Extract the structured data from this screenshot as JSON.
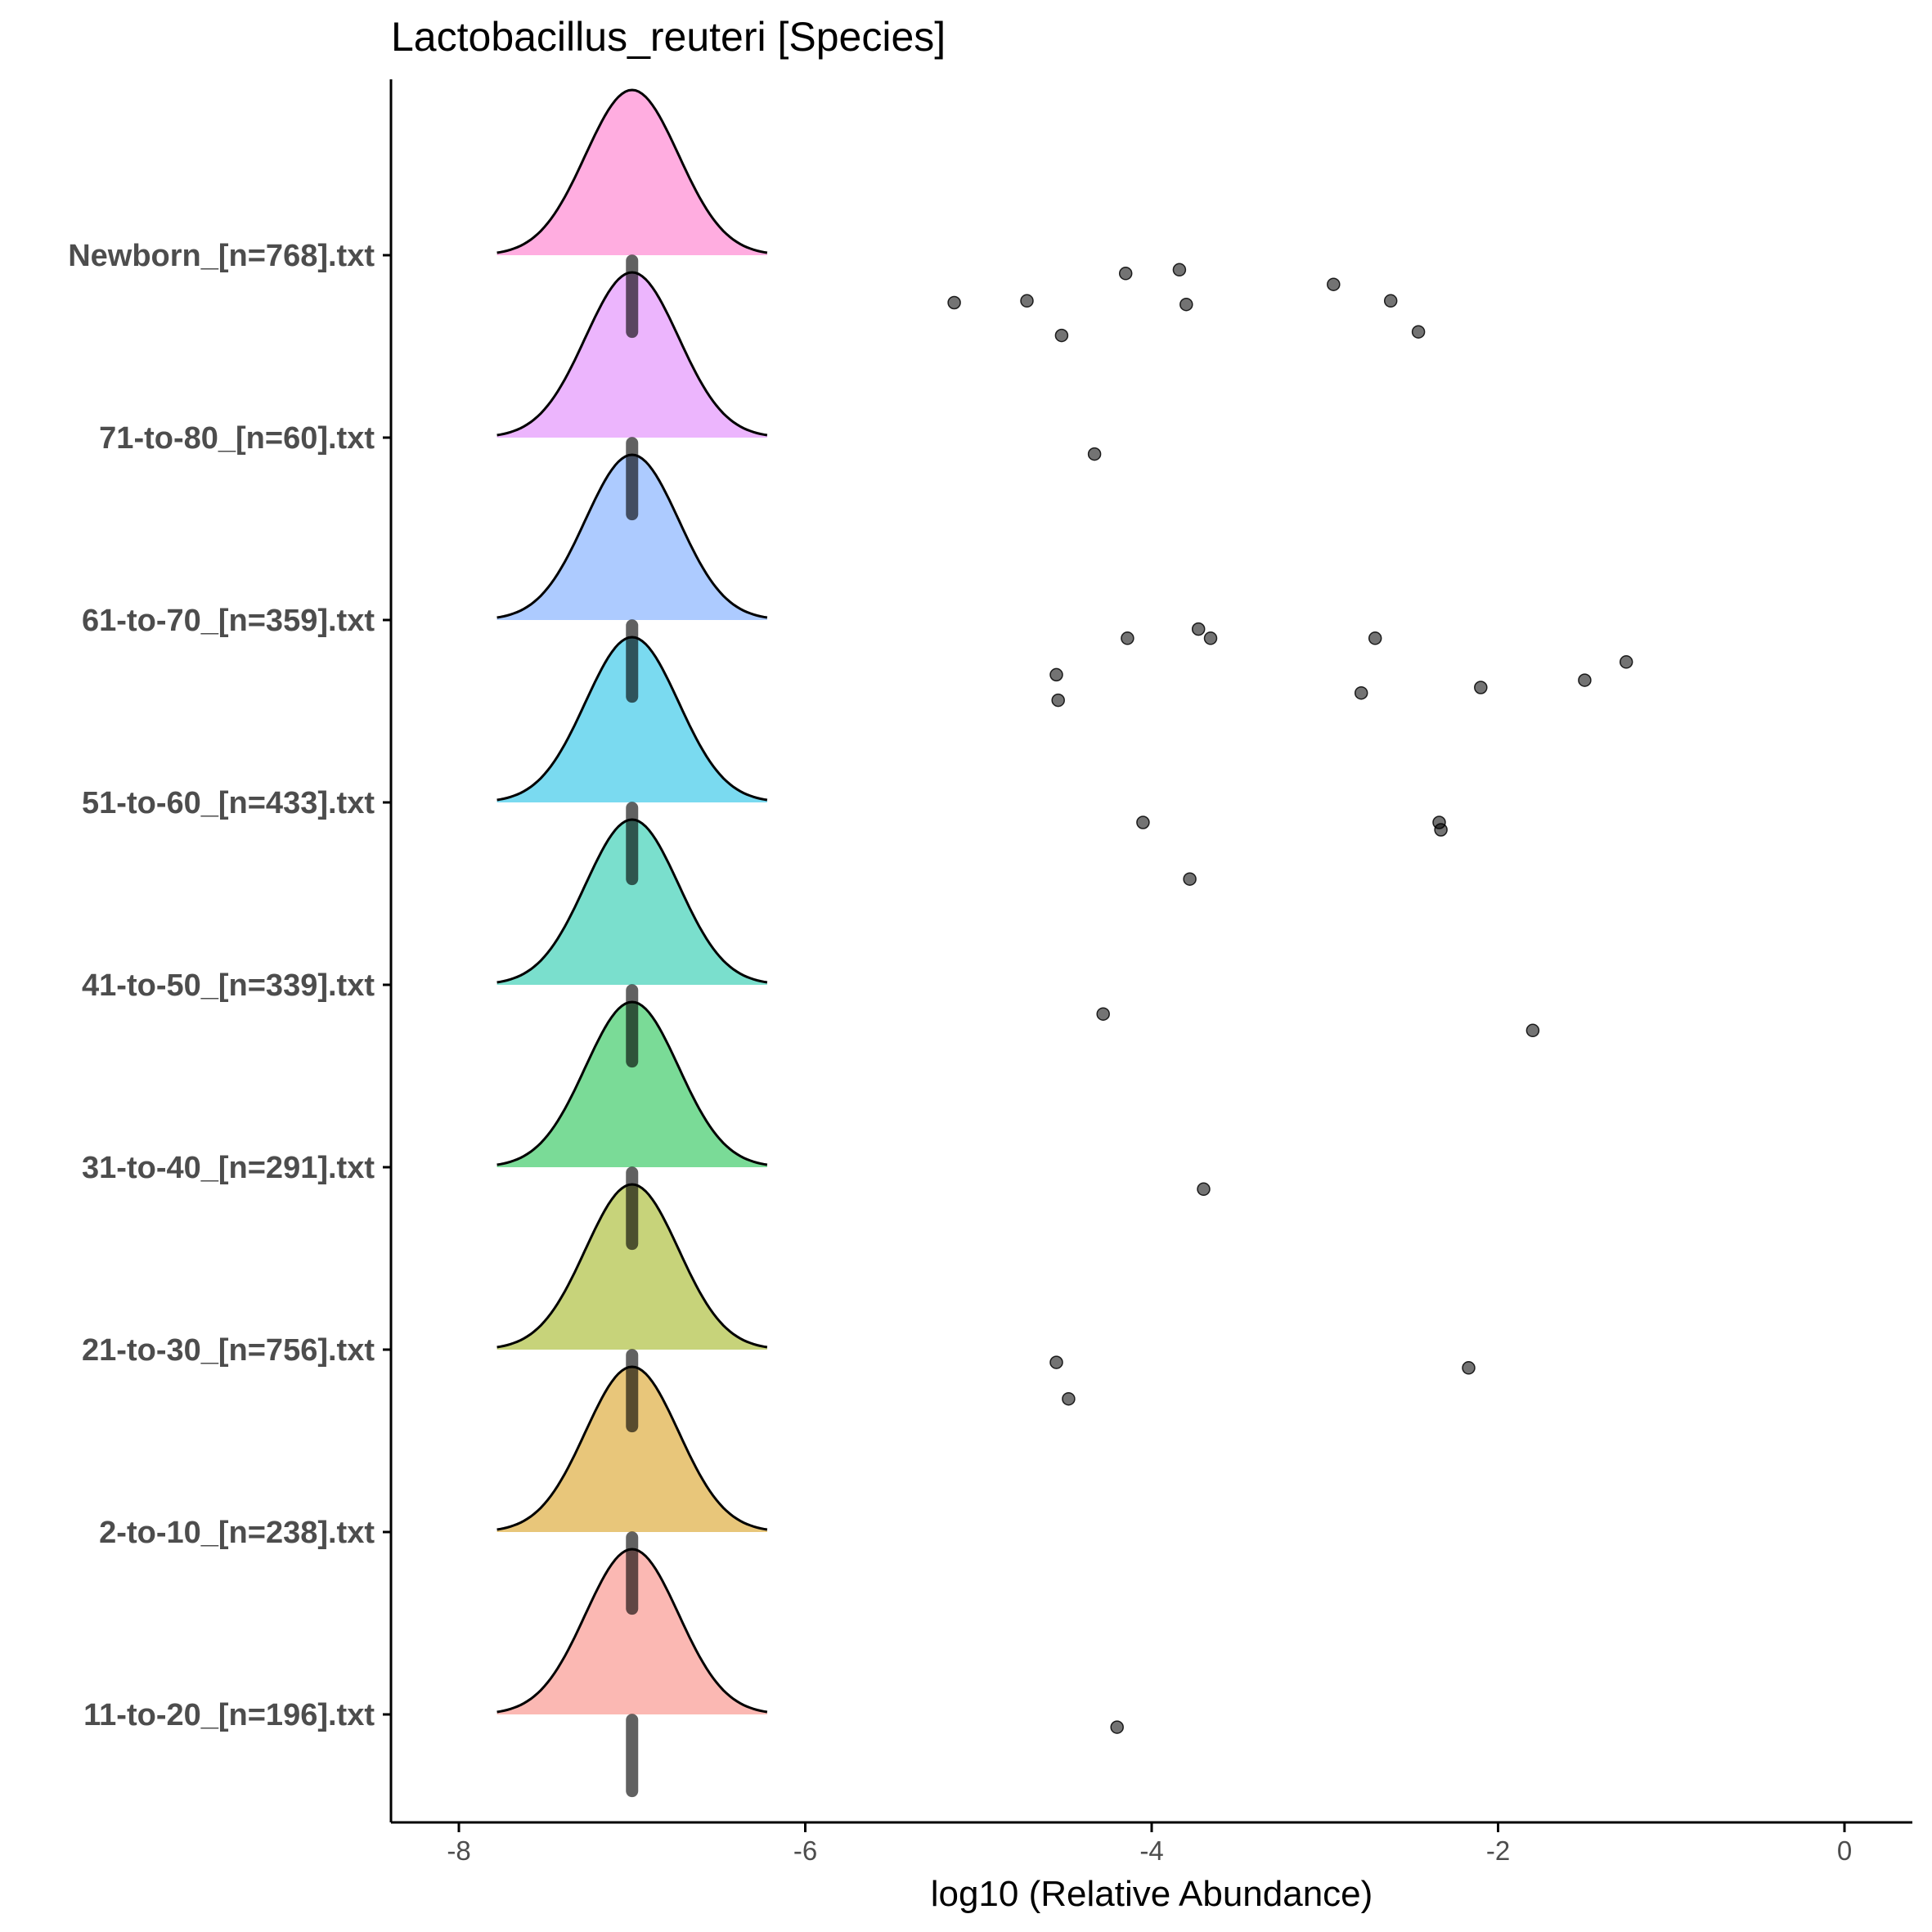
{
  "chart_data": {
    "type": "ridgeline",
    "title": "Lactobacillus_reuteri [Species]",
    "xlabel": "log10 (Relative Abundance)",
    "ylabel": "",
    "xlim": [
      -8.3,
      0.3
    ],
    "x_ticks": [
      -8,
      -6,
      -4,
      -2,
      0
    ],
    "x_tick_labels": [
      "-8",
      "-6",
      "-4",
      "-2",
      "0"
    ],
    "grid": false,
    "legend": "none",
    "ridge_center": -7,
    "ridge_half_width": 0.78,
    "groups": [
      {
        "label": "11-to-20_[n=196].txt",
        "color": "#F8766D",
        "outliers": [
          {
            "x": -4.2,
            "jitter": 0.07
          }
        ]
      },
      {
        "label": "2-to-10_[n=238].txt",
        "color": "#D39200",
        "outliers": []
      },
      {
        "label": "21-to-30_[n=756].txt",
        "color": "#93AA00",
        "outliers": [
          {
            "x": -4.55,
            "jitter": 0.07
          },
          {
            "x": -4.48,
            "jitter": 0.27
          },
          {
            "x": -2.17,
            "jitter": 0.1
          }
        ]
      },
      {
        "label": "31-to-40_[n=291].txt",
        "color": "#00BA38",
        "outliers": [
          {
            "x": -3.7,
            "jitter": 0.12
          }
        ]
      },
      {
        "label": "41-to-50_[n=339].txt",
        "color": "#00C19F",
        "outliers": [
          {
            "x": -4.28,
            "jitter": 0.16
          },
          {
            "x": -1.8,
            "jitter": 0.25
          }
        ]
      },
      {
        "label": "51-to-60_[n=433].txt",
        "color": "#00B9E3",
        "outliers": [
          {
            "x": -4.05,
            "jitter": 0.11
          },
          {
            "x": -3.78,
            "jitter": 0.42
          },
          {
            "x": -2.34,
            "jitter": 0.11
          },
          {
            "x": -2.33,
            "jitter": 0.15
          }
        ]
      },
      {
        "label": "61-to-70_[n=359].txt",
        "color": "#619CFF",
        "outliers": [
          {
            "x": -4.14,
            "jitter": 0.1
          },
          {
            "x": -3.73,
            "jitter": 0.05
          },
          {
            "x": -3.66,
            "jitter": 0.1
          },
          {
            "x": -2.71,
            "jitter": 0.1
          },
          {
            "x": -1.26,
            "jitter": 0.23
          },
          {
            "x": -4.55,
            "jitter": 0.3
          },
          {
            "x": -4.54,
            "jitter": 0.44
          },
          {
            "x": -2.79,
            "jitter": 0.4
          },
          {
            "x": -2.1,
            "jitter": 0.37
          },
          {
            "x": -1.5,
            "jitter": 0.33
          }
        ]
      },
      {
        "label": "71-to-80_[n=60].txt",
        "color": "#DB72FB",
        "outliers": [
          {
            "x": -4.33,
            "jitter": 0.09
          }
        ]
      },
      {
        "label": "Newborn_[n=768].txt",
        "color": "#FF61C3",
        "outliers": [
          {
            "x": -4.15,
            "jitter": 0.1
          },
          {
            "x": -3.84,
            "jitter": 0.08
          },
          {
            "x": -2.95,
            "jitter": 0.16
          },
          {
            "x": -2.62,
            "jitter": 0.25
          },
          {
            "x": -5.14,
            "jitter": 0.26
          },
          {
            "x": -4.72,
            "jitter": 0.25
          },
          {
            "x": -3.8,
            "jitter": 0.27
          },
          {
            "x": -4.52,
            "jitter": 0.44
          },
          {
            "x": -2.46,
            "jitter": 0.42
          }
        ]
      }
    ]
  }
}
